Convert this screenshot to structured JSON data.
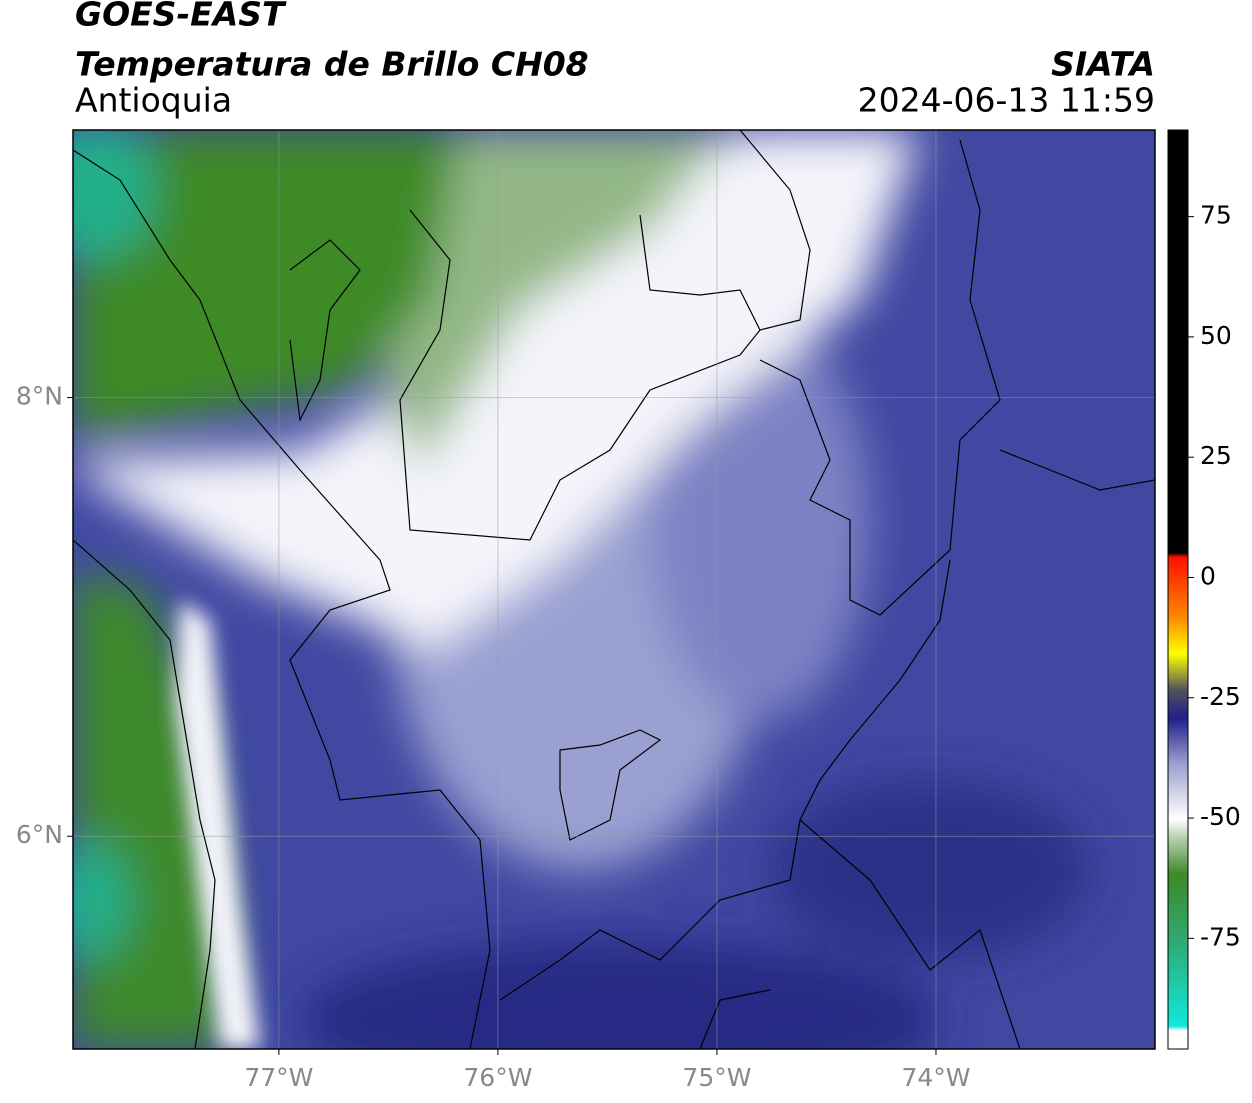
{
  "header": {
    "title": "GOES-EAST",
    "subtitle": "Temperatura de Brillo CH08",
    "region": "Antioquia",
    "source": "SIATA",
    "datetime": "2024-06-13 11:59"
  },
  "map": {
    "xlim": [
      -77.94,
      -73.0
    ],
    "ylim": [
      5.03,
      9.22
    ],
    "xticks": [
      {
        "value": -77,
        "label": "77°W"
      },
      {
        "value": -76,
        "label": "76°W"
      },
      {
        "value": -75,
        "label": "75°W"
      },
      {
        "value": -74,
        "label": "74°W"
      }
    ],
    "yticks": [
      {
        "value": 8,
        "label": "8°N"
      },
      {
        "value": 6,
        "label": "6°N"
      }
    ],
    "grid": true
  },
  "colorbar": {
    "lim": [
      -98,
      93
    ],
    "ticks": [
      75,
      50,
      25,
      0,
      -25,
      -50,
      -75
    ]
  }
}
